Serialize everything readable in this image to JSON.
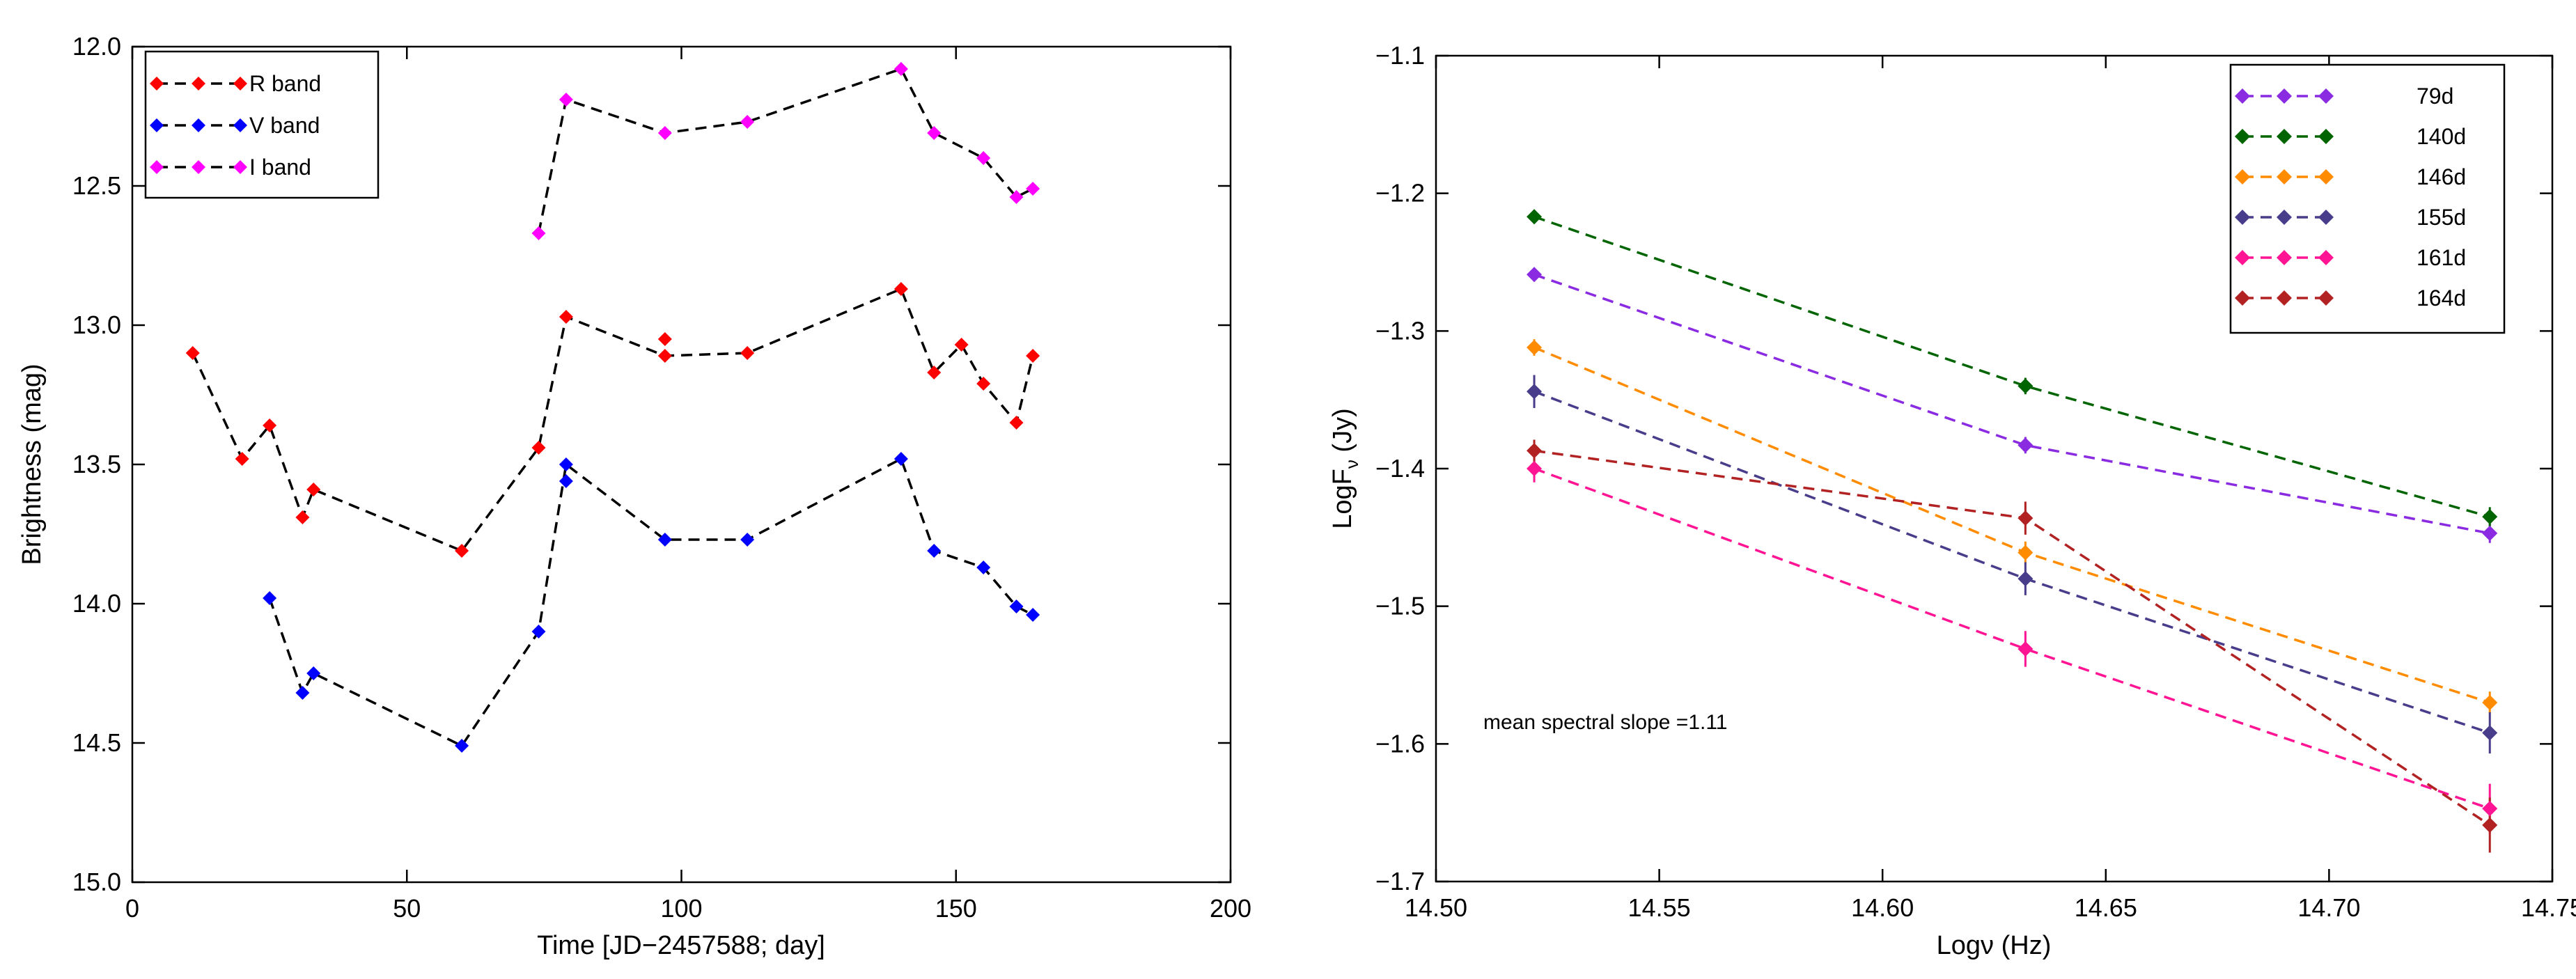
{
  "chart_data": [
    {
      "type": "line",
      "xlabel": "Time [JD−2457588; day]",
      "ylabel": "Brightness (mag)",
      "xlim": [
        0,
        200
      ],
      "ylim": [
        12.0,
        15.0
      ],
      "y_inverted": true,
      "xticks": [
        0,
        50,
        100,
        150,
        200
      ],
      "xtick_labels": [
        "0",
        "50",
        "100",
        "150",
        "200"
      ],
      "yticks": [
        12.0,
        12.5,
        13.0,
        13.5,
        14.0,
        14.5,
        15.0
      ],
      "ytick_labels": [
        "12.0",
        "12.5",
        "13.0",
        "13.5",
        "14.0",
        "14.5",
        "15.0"
      ],
      "legend_position": "top-left",
      "grid": false,
      "series": [
        {
          "name": "R band",
          "color": "#ff0000",
          "x": [
            11,
            20,
            25,
            31,
            33,
            60,
            74,
            79,
            97,
            97,
            112,
            140,
            146,
            151,
            155,
            161,
            164
          ],
          "y": [
            13.1,
            13.48,
            13.36,
            13.69,
            13.59,
            13.81,
            13.44,
            12.97,
            13.05,
            13.11,
            13.1,
            12.87,
            13.17,
            13.07,
            13.21,
            13.35,
            13.11
          ],
          "line_x": [
            11,
            20,
            25,
            31,
            33,
            60,
            74,
            79,
            97,
            112,
            140,
            146,
            151,
            155,
            161,
            164
          ],
          "line_y": [
            13.1,
            13.48,
            13.36,
            13.69,
            13.59,
            13.81,
            13.44,
            12.97,
            13.11,
            13.1,
            12.87,
            13.17,
            13.07,
            13.21,
            13.35,
            13.11
          ]
        },
        {
          "name": "V band",
          "color": "#0000ff",
          "x": [
            25,
            31,
            33,
            60,
            74,
            79,
            79,
            97,
            112,
            140,
            146,
            155,
            161,
            164
          ],
          "y": [
            13.98,
            14.32,
            14.25,
            14.51,
            14.1,
            13.5,
            13.56,
            13.77,
            13.77,
            13.48,
            13.81,
            13.87,
            14.01,
            14.04
          ],
          "line_x": [
            25,
            31,
            33,
            60,
            74,
            79,
            97,
            112,
            140,
            146,
            155,
            161,
            164
          ],
          "line_y": [
            13.98,
            14.32,
            14.25,
            14.51,
            14.1,
            13.5,
            13.77,
            13.77,
            13.48,
            13.81,
            13.87,
            14.01,
            14.04
          ]
        },
        {
          "name": "I band",
          "color": "#ff00ff",
          "x": [
            74,
            79,
            97,
            112,
            140,
            146,
            155,
            161,
            164
          ],
          "y": [
            12.67,
            12.19,
            12.31,
            12.27,
            12.08,
            12.31,
            12.4,
            12.54,
            12.51
          ],
          "line_x": [
            74,
            79,
            97,
            112,
            140,
            146,
            155,
            161,
            164
          ],
          "line_y": [
            12.67,
            12.19,
            12.31,
            12.27,
            12.08,
            12.31,
            12.4,
            12.54,
            12.51
          ]
        }
      ]
    },
    {
      "type": "line",
      "xlabel": "Logν (Hz)",
      "ylabel_main": "LogF",
      "ylabel_sub": "ν",
      "ylabel_unit": " (Jy)",
      "xlim": [
        14.5,
        14.75
      ],
      "ylim": [
        -1.7,
        -1.1
      ],
      "xticks": [
        14.5,
        14.55,
        14.6,
        14.65,
        14.7,
        14.75
      ],
      "xtick_labels": [
        "14.50",
        "14.55",
        "14.60",
        "14.65",
        "14.70",
        "14.75"
      ],
      "yticks": [
        -1.1,
        -1.2,
        -1.3,
        -1.4,
        -1.5,
        -1.6,
        -1.7
      ],
      "ytick_labels": [
        "−1.1",
        "−1.2",
        "−1.3",
        "−1.4",
        "−1.5",
        "−1.6",
        "−1.7"
      ],
      "legend_position": "top-right",
      "grid": false,
      "annotation": "mean spectral slope =1.11",
      "x": [
        14.522,
        14.632,
        14.736
      ],
      "series": [
        {
          "name": "79d",
          "color": "#8a2be2",
          "y": [
            -1.259,
            -1.383,
            -1.447
          ],
          "err": [
            0.005,
            0.006,
            0.007
          ]
        },
        {
          "name": "140d",
          "color": "#006400",
          "y": [
            -1.217,
            -1.34,
            -1.435
          ],
          "err": [
            0.005,
            0.006,
            0.007
          ]
        },
        {
          "name": "146d",
          "color": "#ff8c00",
          "y": [
            -1.312,
            -1.461,
            -1.57
          ],
          "err": [
            0.006,
            0.008,
            0.008
          ]
        },
        {
          "name": "155d",
          "color": "#483d8b",
          "y": [
            -1.344,
            -1.48,
            -1.592
          ],
          "err": [
            0.012,
            0.012,
            0.015
          ]
        },
        {
          "name": "161d",
          "color": "#ff1493",
          "y": [
            -1.4,
            -1.531,
            -1.647
          ],
          "err": [
            0.01,
            0.013,
            0.018
          ]
        },
        {
          "name": "164d",
          "color": "#b22222",
          "y": [
            -1.387,
            -1.436,
            -1.659
          ],
          "err": [
            0.008,
            0.012,
            0.02
          ]
        }
      ]
    }
  ]
}
